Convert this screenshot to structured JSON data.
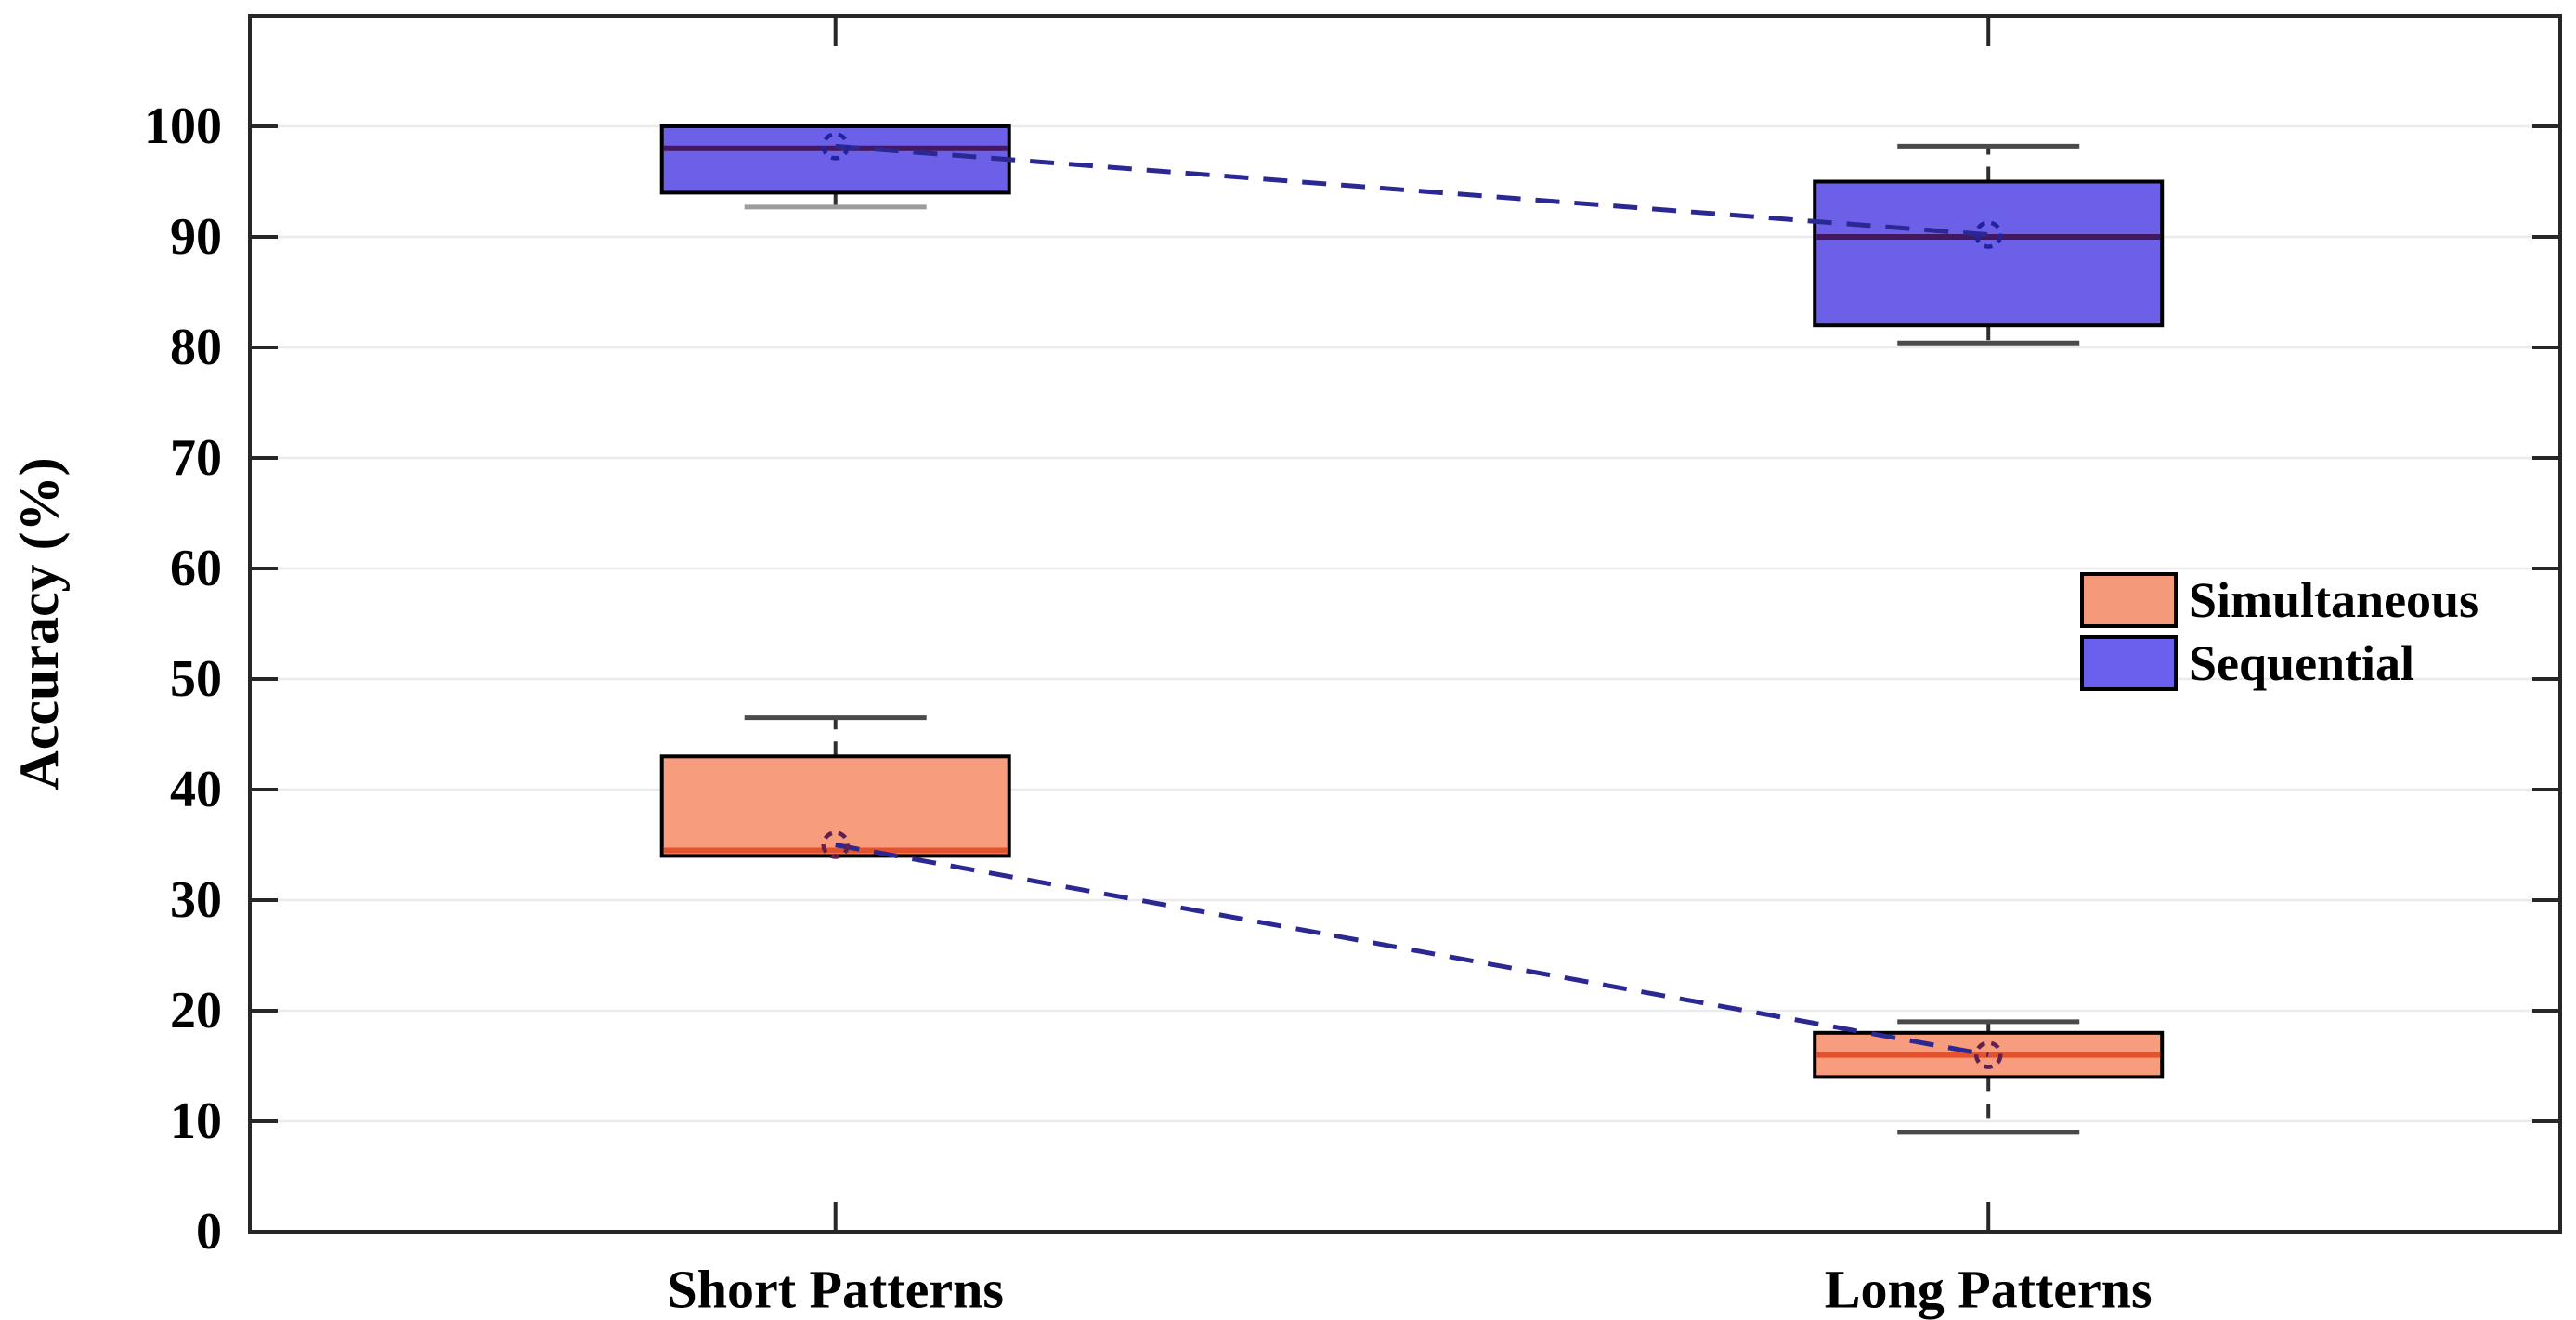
{
  "figure": {
    "background": "#ffffff",
    "description": "Box plot of accuracy by pattern length for two presentation conditions"
  },
  "chart_data": {
    "type": "boxplot",
    "title": "",
    "xlabel": "",
    "ylabel": "Accuracy (%)",
    "categories": [
      "Short Patterns",
      "Long Patterns"
    ],
    "ylim": [
      0,
      110
    ],
    "yticks": [
      0,
      10,
      20,
      30,
      40,
      50,
      60,
      70,
      80,
      90,
      100
    ],
    "grid": "horizontal-light-gray-gridlines",
    "frame": "box-on-with-inward-ticks-all-sides",
    "style": {
      "frame_color": "#272727",
      "grid_color": "#ebebeb",
      "tick_label_color": "#000000",
      "whisker_color": "#2f2f2f",
      "whisker_cap_color": "#4a4a4a",
      "box_border_color": "#000000"
    },
    "legend": {
      "position": "middle-right-inside-plot",
      "entries": [
        {
          "label": "Simultaneous",
          "color": "#f5997b"
        },
        {
          "label": "Sequential",
          "color": "#6b60ee"
        }
      ]
    },
    "mean_connector": {
      "style": "dashed",
      "color": "#2b2894",
      "note": "dashed navy line joining the mean markers of each series across categories"
    },
    "mean_marker": {
      "shape": "open-circle-dashed-outline"
    },
    "series": [
      {
        "name": "Simultaneous",
        "box_color": "#f79c7d",
        "median_color": "#e4512d",
        "mean_marker_color": "#61204e",
        "boxes": [
          {
            "category": "Short Patterns",
            "whisker_low": 34,
            "q1": 34,
            "median": 34.5,
            "q3": 43,
            "whisker_high": 46.5,
            "mean": 35
          },
          {
            "category": "Long Patterns",
            "whisker_low": 9,
            "q1": 14,
            "median": 16,
            "q3": 18,
            "whisker_high": 19,
            "mean": 16
          }
        ]
      },
      {
        "name": "Sequential",
        "box_color": "#6c60e8",
        "median_color": "#45175e",
        "mean_marker_color": "#2222a0",
        "boxes": [
          {
            "category": "Short Patterns",
            "whisker_low": 92.7,
            "q1": 94,
            "median": 98,
            "q3": 100,
            "whisker_high": 100,
            "mean": 98.2,
            "low_cap_color": "#9c9c9c"
          },
          {
            "category": "Long Patterns",
            "whisker_low": 80.4,
            "q1": 82,
            "median": 90,
            "q3": 95,
            "whisker_high": 98.2,
            "mean": 90.2
          }
        ]
      }
    ]
  }
}
